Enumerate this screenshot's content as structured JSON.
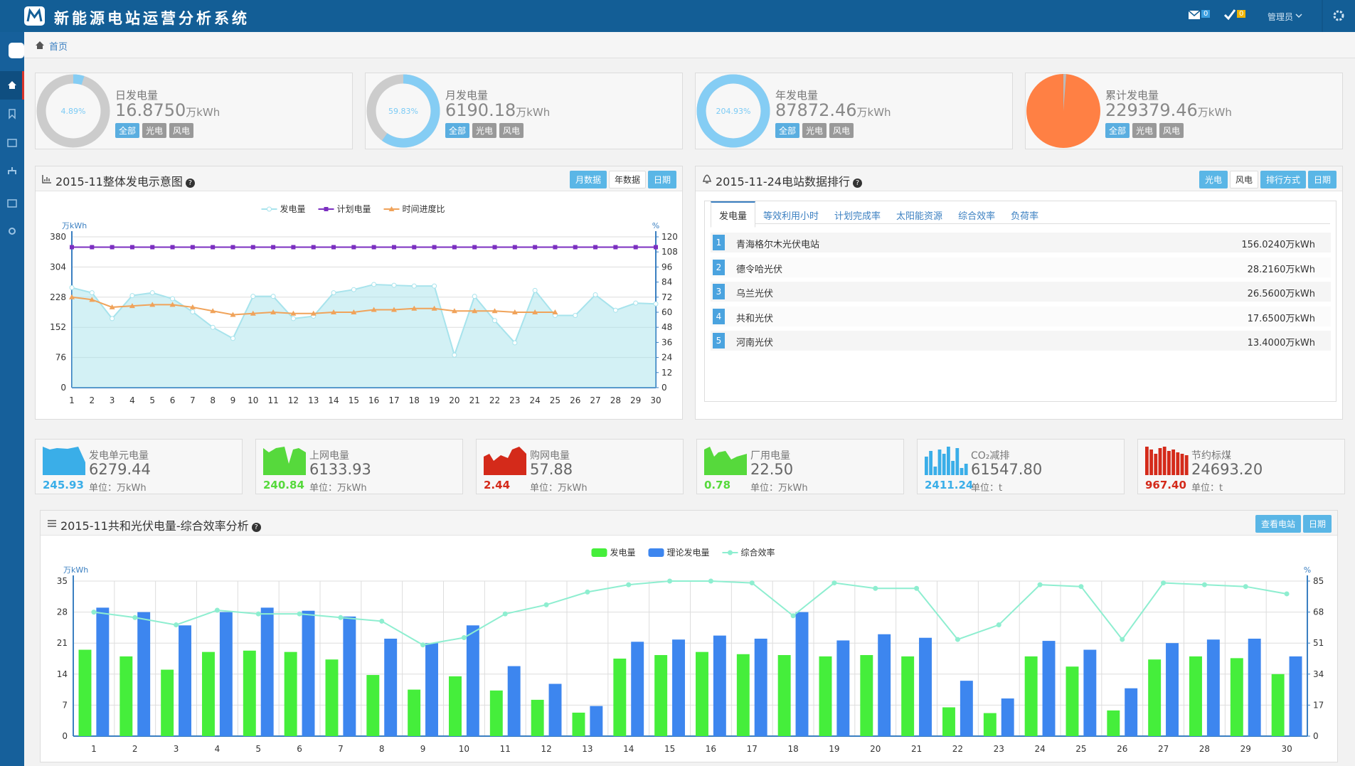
{
  "header": {
    "title": "新能源电站运营分析系统",
    "badges": [
      0,
      0
    ],
    "user": "管理员"
  },
  "breadcrumb": "首页",
  "summary": [
    {
      "title": "日发电量",
      "percent": {
        "value": 4.89,
        "label": "4.89%"
      },
      "value": "16.8750",
      "unit": "万kWh",
      "tags": [
        "全部",
        "光电",
        "风电"
      ]
    },
    {
      "title": "月发电量",
      "percent": {
        "value": 59.83,
        "label": "59.83%"
      },
      "value": "6190.18",
      "unit": "万kWh",
      "tags": [
        "全部",
        "光电",
        "风电"
      ]
    },
    {
      "title": "年发电量",
      "percent": {
        "value": 204.93,
        "label": "204.93%"
      },
      "value": "87872.46",
      "unit": "万kWh",
      "tags": [
        "全部",
        "光电",
        "风电"
      ]
    },
    {
      "title": "累计发电量",
      "value": "229379.46",
      "unit": "万kWh",
      "tags": [
        "全部",
        "光电",
        "风电"
      ]
    }
  ],
  "chart_data": [
    {
      "type": "line",
      "title": "2015-11整体发电示意图",
      "buttons": [
        "月数据",
        "年数据",
        "日期"
      ],
      "ylabel": "万kWh",
      "y2label": "%",
      "x": [
        1,
        2,
        3,
        4,
        5,
        6,
        7,
        8,
        9,
        10,
        11,
        12,
        13,
        14,
        15,
        16,
        17,
        18,
        19,
        20,
        21,
        22,
        23,
        24,
        25,
        26,
        27,
        28,
        29,
        30
      ],
      "xlim": [
        1,
        30
      ],
      "ylim": [
        0,
        380
      ],
      "yticks": [
        0,
        76,
        152,
        228,
        304,
        380
      ],
      "y2lim": [
        0,
        120
      ],
      "y2ticks": [
        0,
        12,
        24,
        36,
        48,
        60,
        72,
        84,
        96,
        108,
        120
      ],
      "grid": true,
      "series": [
        {
          "name": "发电量",
          "color": "#a7e3ec",
          "area": true,
          "marker": "circle",
          "values": [
            252,
            239,
            174,
            232,
            239,
            224,
            191,
            152,
            124,
            230,
            230,
            174,
            180,
            239,
            247,
            260,
            258,
            256,
            256,
            82,
            230,
            169,
            113,
            245,
            182,
            182,
            234,
            195,
            213,
            211
          ]
        },
        {
          "name": "计划电量",
          "color": "#7b2fc0",
          "marker": "square",
          "values": [
            354,
            354,
            354,
            354,
            354,
            354,
            354,
            354,
            354,
            354,
            354,
            354,
            354,
            354,
            354,
            354,
            354,
            354,
            354,
            354,
            354,
            354,
            354,
            354,
            354,
            354,
            354,
            354,
            354,
            354
          ]
        },
        {
          "name": "时间进度比",
          "color": "#f0a35a",
          "marker": "triangle",
          "axis": "y2",
          "values": [
            72,
            70,
            64,
            65,
            66,
            66,
            64,
            61,
            58,
            59,
            60,
            59,
            59,
            60,
            60,
            62,
            62,
            63,
            63,
            61,
            61,
            61,
            60,
            60,
            60,
            null,
            null,
            null,
            null,
            null
          ]
        }
      ]
    },
    {
      "type": "bar",
      "title": "2015-11共和光伏电量-综合效率分析",
      "buttons": [
        "查看电站",
        "日期"
      ],
      "ylabel": "万kWh",
      "y2label": "%",
      "categories": [
        1,
        2,
        3,
        4,
        5,
        6,
        7,
        8,
        9,
        10,
        11,
        12,
        13,
        14,
        15,
        16,
        17,
        18,
        19,
        20,
        21,
        22,
        23,
        24,
        25,
        26,
        27,
        28,
        29,
        30
      ],
      "ylim": [
        0,
        35
      ],
      "yticks": [
        0,
        7,
        14,
        21,
        28,
        35
      ],
      "y2lim": [
        0,
        85
      ],
      "y2ticks": [
        0,
        17,
        34,
        51,
        68,
        85
      ],
      "grid": true,
      "series": [
        {
          "name": "发电量",
          "color": "#45ee3b",
          "values": [
            19.5,
            18,
            15,
            19,
            19.3,
            19,
            17.3,
            13.8,
            10.5,
            13.5,
            10.3,
            8.2,
            5.3,
            17.5,
            18.3,
            19,
            18.5,
            18.3,
            18,
            18.3,
            18,
            6.5,
            5.2,
            18,
            15.7,
            5.8,
            17.3,
            18,
            17.6,
            14
          ]
        },
        {
          "name": "理论发电量",
          "color": "#3d86ef",
          "values": [
            29,
            28,
            25,
            28,
            29,
            28.3,
            27,
            22,
            21,
            25,
            15.8,
            11.8,
            6.8,
            21.3,
            21.8,
            22.7,
            22,
            28,
            21.6,
            23,
            22.2,
            12.5,
            8.5,
            21.5,
            19.5,
            10.8,
            21,
            21.8,
            22,
            18
          ]
        },
        {
          "name": "综合效率",
          "color": "#8eeed0",
          "type": "line",
          "axis": "y2",
          "values": [
            68,
            65,
            61,
            69,
            67,
            67,
            65,
            63,
            50,
            54,
            67,
            72,
            79,
            83,
            85,
            85,
            84,
            66,
            84,
            81,
            81,
            53,
            61,
            83,
            82,
            53,
            84,
            83,
            82,
            78
          ]
        }
      ]
    }
  ],
  "ranking": {
    "title": "2015-11-24电站数据排行",
    "buttons": [
      "光电",
      "风电",
      "排行方式",
      "日期"
    ],
    "tabs": [
      "发电量",
      "等效利用小时",
      "计划完成率",
      "太阳能资源",
      "综合效率",
      "负荷率"
    ],
    "rows": [
      {
        "rank": 1,
        "name": "青海格尔木光伏电站",
        "value": "156.0240万kWh"
      },
      {
        "rank": 2,
        "name": "德令哈光伏",
        "value": "28.2160万kWh"
      },
      {
        "rank": 3,
        "name": "乌兰光伏",
        "value": "26.5600万kWh"
      },
      {
        "rank": 4,
        "name": "共和光伏",
        "value": "17.6500万kWh"
      },
      {
        "rank": 5,
        "name": "河南光伏",
        "value": "13.4000万kWh"
      }
    ]
  },
  "metrics": [
    {
      "title": "发电单元电量",
      "value": "6279.44",
      "sub": "245.93",
      "unit": "单位：万kWh",
      "color": "#3aaee8"
    },
    {
      "title": "上网电量",
      "value": "6133.93",
      "sub": "240.84",
      "unit": "单位：万kWh",
      "color": "#56d93c"
    },
    {
      "title": "购网电量",
      "value": "57.88",
      "sub": "2.44",
      "unit": "单位：万kWh",
      "color": "#d42a1a"
    },
    {
      "title": "厂用电量",
      "value": "22.50",
      "sub": "0.78",
      "unit": "单位：万kWh",
      "color": "#56d93c"
    },
    {
      "title": "CO₂减排",
      "value": "61547.80",
      "sub": "2411.24",
      "unit": "单位：t",
      "color": "#3aaee8"
    },
    {
      "title": "节约标煤",
      "value": "24693.20",
      "sub": "967.40",
      "unit": "单位：t",
      "color": "#d42a1a"
    }
  ]
}
